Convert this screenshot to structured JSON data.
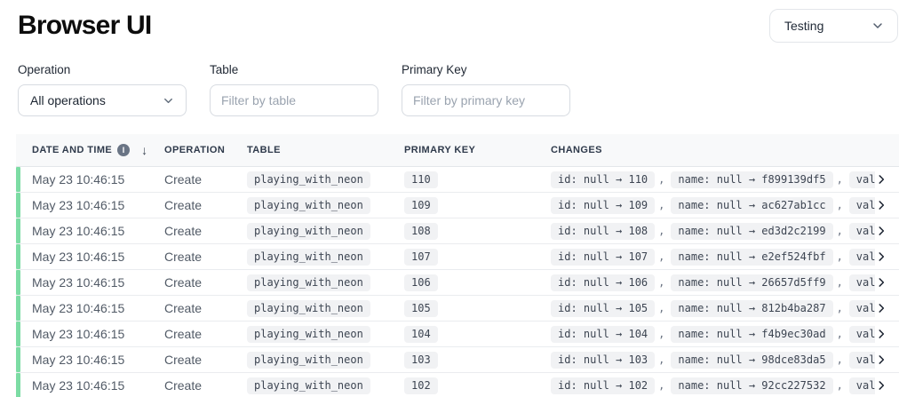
{
  "page": {
    "title": "Browser UI"
  },
  "branch_selector": {
    "value": "Testing"
  },
  "filters": {
    "operation": {
      "label": "Operation",
      "value": "All operations"
    },
    "table": {
      "label": "Table",
      "placeholder": "Filter by table"
    },
    "primary_key": {
      "label": "Primary Key",
      "placeholder": "Filter by primary key"
    }
  },
  "log_table": {
    "headers": {
      "datetime": "Date and time",
      "operation": "Operation",
      "table": "Table",
      "primary_key": "Primary key",
      "changes": "Changes"
    },
    "sort_icon": "↓",
    "info_icon_glyph": "i",
    "rows": [
      {
        "datetime": "May 23 10:46:15",
        "operation": "Create",
        "table": "playing_with_neon",
        "primary_key": "110",
        "changes": [
          "id: null → 110",
          "name: null → f899139df5",
          "value:"
        ]
      },
      {
        "datetime": "May 23 10:46:15",
        "operation": "Create",
        "table": "playing_with_neon",
        "primary_key": "109",
        "changes": [
          "id: null → 109",
          "name: null → ac627ab1cc",
          "value:"
        ]
      },
      {
        "datetime": "May 23 10:46:15",
        "operation": "Create",
        "table": "playing_with_neon",
        "primary_key": "108",
        "changes": [
          "id: null → 108",
          "name: null → ed3d2c2199",
          "value:"
        ]
      },
      {
        "datetime": "May 23 10:46:15",
        "operation": "Create",
        "table": "playing_with_neon",
        "primary_key": "107",
        "changes": [
          "id: null → 107",
          "name: null → e2ef524fbf",
          "value:"
        ]
      },
      {
        "datetime": "May 23 10:46:15",
        "operation": "Create",
        "table": "playing_with_neon",
        "primary_key": "106",
        "changes": [
          "id: null → 106",
          "name: null → 26657d5ff9",
          "value:"
        ]
      },
      {
        "datetime": "May 23 10:46:15",
        "operation": "Create",
        "table": "playing_with_neon",
        "primary_key": "105",
        "changes": [
          "id: null → 105",
          "name: null → 812b4ba287",
          "value:"
        ]
      },
      {
        "datetime": "May 23 10:46:15",
        "operation": "Create",
        "table": "playing_with_neon",
        "primary_key": "104",
        "changes": [
          "id: null → 104",
          "name: null → f4b9ec30ad",
          "value:"
        ]
      },
      {
        "datetime": "May 23 10:46:15",
        "operation": "Create",
        "table": "playing_with_neon",
        "primary_key": "103",
        "changes": [
          "id: null → 103",
          "name: null → 98dce83da5",
          "value:"
        ]
      },
      {
        "datetime": "May 23 10:46:15",
        "operation": "Create",
        "table": "playing_with_neon",
        "primary_key": "102",
        "changes": [
          "id: null → 102",
          "name: null → 92cc227532",
          "value:"
        ]
      }
    ],
    "changes_separator": ",",
    "colors": {
      "accent_green": "#7cdca4",
      "header_bg": "#f8f9fa",
      "badge_bg": "#f1f2f4",
      "row_border": "#eaecef"
    }
  }
}
